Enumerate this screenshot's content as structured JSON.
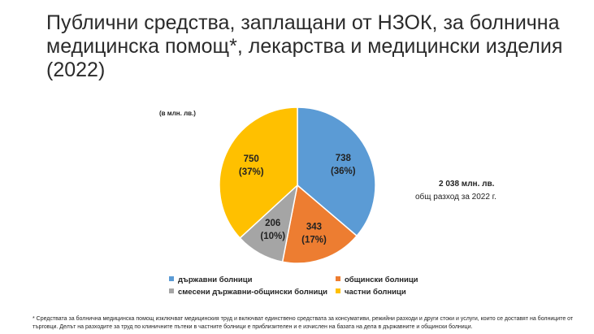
{
  "title": "Публични средства, заплащани от НЗОК, за болнична медицинска помощ*, лекарства и медицински изделия (2022)",
  "units_note": "(в млн. лв.)",
  "total": {
    "value": "2 038 млн. лв.",
    "label": "общ разход за 2022 г."
  },
  "footnote": "* Средствата за болнична медицинска помощ изключват медицинския труд и включват единствено средствата за консумативи, режийни разходи и други стоки и услуги, които се доставят на болниците от търговци. Делът на разходите за труд по клиничните пътеки в частните болници е приблизителен и е изчислен на базата на дела в държавните и общински болници.",
  "chart_data": {
    "type": "pie",
    "title": "",
    "series": [
      {
        "name": "",
        "slices": [
          {
            "label": "държавни болници",
            "value": 738,
            "value_label": "738",
            "percent_label": "(36%)",
            "color": "#5b9bd5"
          },
          {
            "label": "общински болници",
            "value": 343,
            "value_label": "343",
            "percent_label": "(17%)",
            "color": "#ed7d31"
          },
          {
            "label": "смесени държавни-общински болници",
            "value": 206,
            "value_label": "206",
            "percent_label": "(10%)",
            "color": "#a5a5a5"
          },
          {
            "label": "частни болници",
            "value": 750,
            "value_label": "750",
            "percent_label": "(37%)",
            "color": "#ffc000"
          }
        ]
      }
    ],
    "start_angle_deg": 0,
    "direction": "clockwise",
    "legend_position": "bottom",
    "data_labels": "inside"
  }
}
